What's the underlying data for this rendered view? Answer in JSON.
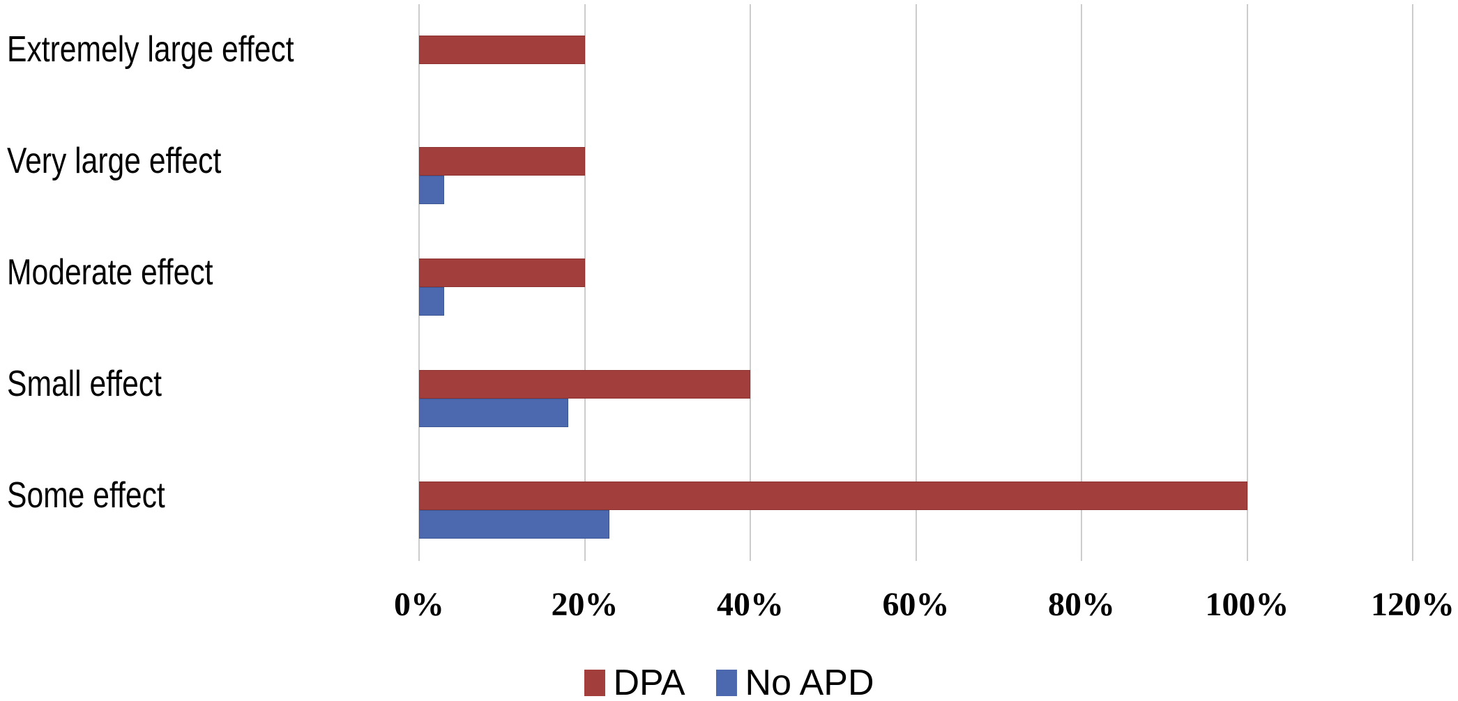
{
  "chart_data": {
    "type": "bar",
    "orientation": "horizontal",
    "title": "",
    "categories": [
      "Extremely large effect",
      "Very large effect",
      "Moderate effect",
      "Small effect",
      "Some effect"
    ],
    "series": [
      {
        "name": "DPA",
        "color": "#a23e3c",
        "border_color": "#8c3331",
        "values": [
          20,
          20,
          20,
          40,
          100
        ]
      },
      {
        "name": "No APD",
        "color": "#4c68ae",
        "border_color": "#3d5694",
        "values": [
          0,
          3,
          3,
          18,
          23
        ]
      }
    ],
    "x_tick_labels": [
      "0%",
      "20%",
      "40%",
      "60%",
      "80%",
      "100%",
      "120%"
    ],
    "x_tick_values": [
      0,
      20,
      40,
      60,
      80,
      100,
      120
    ],
    "xlim": [
      0,
      120
    ],
    "grid": "vertical",
    "gridline_color": "#cccccc",
    "legend_position": "bottom",
    "background_color": "#ffffff",
    "text_color": "#000000"
  }
}
